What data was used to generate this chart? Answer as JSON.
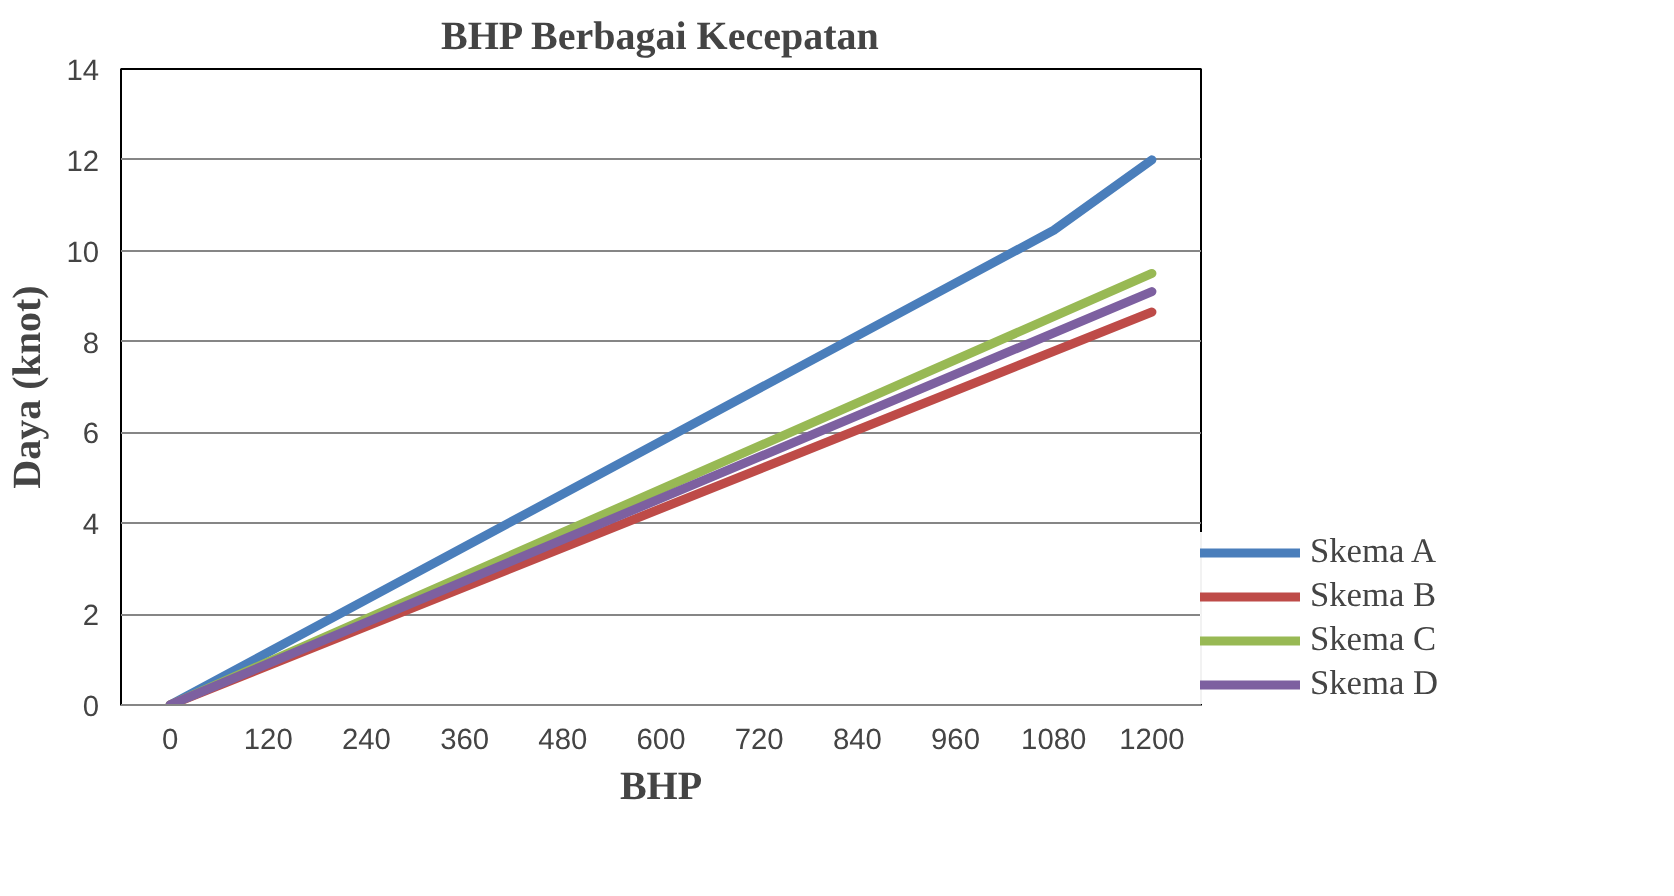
{
  "chart_data": {
    "type": "line",
    "title": "BHP Berbagai Kecepatan",
    "xlabel": "BHP",
    "ylabel": "Daya (knot)",
    "xlim": [
      -60,
      1260
    ],
    "xticks": [
      0,
      120,
      240,
      360,
      480,
      600,
      720,
      840,
      960,
      1080,
      1200
    ],
    "ylim": [
      0,
      14
    ],
    "yticks": [
      0,
      2,
      4,
      6,
      8,
      10,
      12,
      14
    ],
    "grid": "y",
    "legend": "right",
    "marker": "none",
    "line_style": "solid",
    "series": [
      {
        "name": "Skema A",
        "color": "#4a7ebb",
        "x": [
          0,
          1080,
          1200
        ],
        "values": [
          0,
          10.45,
          12
        ]
      },
      {
        "name": "Skema B",
        "color": "#be4b48",
        "x": [
          0,
          1200
        ],
        "values": [
          0,
          8.65
        ]
      },
      {
        "name": "Skema C",
        "color": "#98b954",
        "x": [
          0,
          1200
        ],
        "values": [
          0,
          9.5
        ]
      },
      {
        "name": "Skema D",
        "color": "#7d60a0",
        "x": [
          0,
          1200
        ],
        "values": [
          0,
          9.1
        ]
      }
    ]
  }
}
